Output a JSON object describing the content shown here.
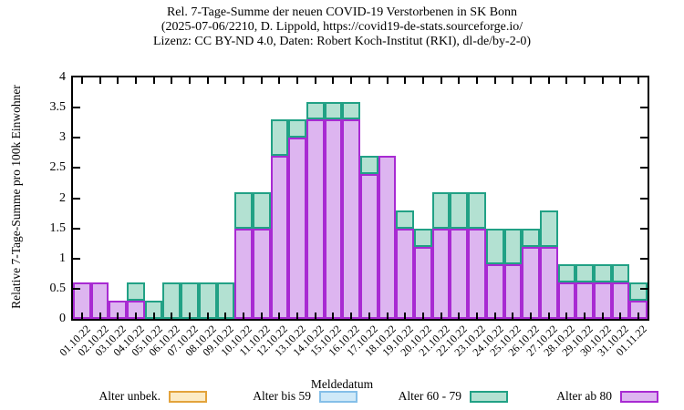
{
  "title": {
    "line1": "Rel. 7-Tage-Summe der neuen COVID-19 Verstorbenen in SK Bonn",
    "line2": "(2025-07-06/2210, D. Lippold, https://covid19-de-stats.sourceforge.io/",
    "line3": "Lizenz: CC BY-ND 4.0, Daten: Robert Koch-Institut (RKI), dl-de/by-2-0)"
  },
  "chart_data": {
    "type": "bar",
    "stacked": true,
    "title": "Rel. 7-Tage-Summe der neuen COVID-19 Verstorbenen in SK Bonn",
    "xlabel": "Meldedatum",
    "ylabel": "Relative 7-Tage-Summe pro 100k Einwohner",
    "ylim": [
      0,
      4
    ],
    "ytick_step": 0.5,
    "grid": false,
    "legend_position": "bottom",
    "categories": [
      "01.10.22",
      "02.10.22",
      "03.10.22",
      "04.10.22",
      "05.10.22",
      "06.10.22",
      "07.10.22",
      "08.10.22",
      "09.10.22",
      "10.10.22",
      "11.10.22",
      "12.10.22",
      "13.10.22",
      "14.10.22",
      "15.10.22",
      "16.10.22",
      "17.10.22",
      "18.10.22",
      "19.10.22",
      "20.10.22",
      "21.10.22",
      "22.10.22",
      "23.10.22",
      "24.10.22",
      "25.10.22",
      "26.10.22",
      "27.10.22",
      "28.10.22",
      "29.10.22",
      "30.10.22",
      "31.10.22",
      "01.11.22"
    ],
    "series": [
      {
        "name": "Alter unbek.",
        "border_color": "#e3a33b",
        "fill_color": "#fcebc5",
        "values": [
          0,
          0,
          0,
          0,
          0,
          0,
          0,
          0,
          0,
          0,
          0,
          0,
          0,
          0,
          0,
          0,
          0,
          0,
          0,
          0,
          0,
          0,
          0,
          0,
          0,
          0,
          0,
          0,
          0,
          0,
          0,
          0
        ]
      },
      {
        "name": "Alter bis 59",
        "border_color": "#85bfe8",
        "fill_color": "#cfe9f8",
        "values": [
          0,
          0,
          0,
          0,
          0,
          0,
          0,
          0,
          0,
          0,
          0,
          0,
          0,
          0,
          0,
          0,
          0,
          0,
          0,
          0,
          0,
          0,
          0,
          0,
          0,
          0,
          0,
          0,
          0,
          0,
          0,
          0
        ]
      },
      {
        "name": "Alter 60 - 79",
        "border_color": "#21a185",
        "fill_color": "#b3e1d2",
        "values": [
          0,
          0,
          0,
          0.3,
          0.3,
          0.6,
          0.6,
          0.6,
          0.6,
          0.6,
          0.6,
          0.6,
          0.3,
          0.3,
          0.3,
          0.3,
          0.3,
          0,
          0.3,
          0.3,
          0.6,
          0.6,
          0.6,
          0.6,
          0.6,
          0.3,
          0.6,
          0.3,
          0.3,
          0.3,
          0.3,
          0.3
        ]
      },
      {
        "name": "Alter ab 80",
        "border_color": "#a82ad2",
        "fill_color": "#ddb5f0",
        "values": [
          0.6,
          0.6,
          0.3,
          0.3,
          0,
          0,
          0,
          0,
          0,
          1.5,
          1.5,
          2.7,
          3.0,
          3.3,
          3.3,
          3.3,
          2.4,
          2.7,
          1.5,
          1.2,
          1.5,
          1.5,
          1.5,
          0.9,
          0.9,
          1.2,
          1.2,
          0.6,
          0.6,
          0.6,
          0.6,
          0.3
        ]
      }
    ],
    "stack_order_bottom_to_top": [
      "Alter ab 80",
      "Alter 60 - 79",
      "Alter bis 59",
      "Alter unbek."
    ]
  }
}
